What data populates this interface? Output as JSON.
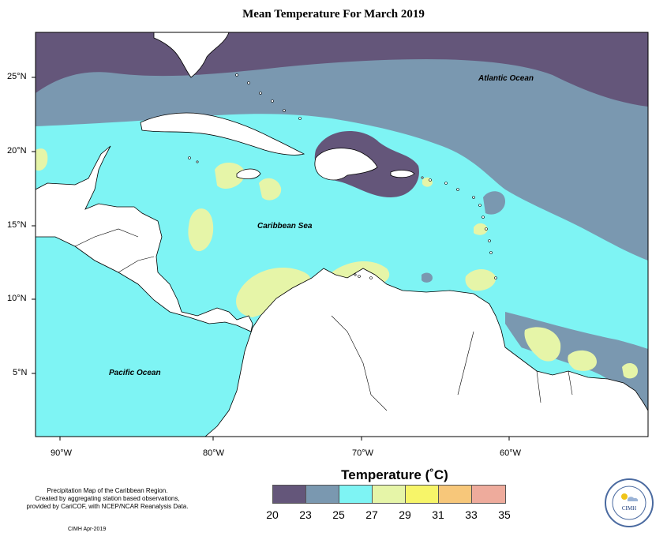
{
  "title": "Mean Temperature For March 2019",
  "lat_labels": [
    "25°N",
    "20°N",
    "15°N",
    "10°N",
    "5°N"
  ],
  "lon_labels": [
    "90°W",
    "80°W",
    "70°W",
    "60°W"
  ],
  "places": {
    "atlantic": "Atlantic Ocean",
    "caribbean": "Caribbean Sea",
    "pacific": "Pacific Ocean"
  },
  "legend": {
    "title": "Temperature (˚C)",
    "colors": [
      "#64567a",
      "#7a98b0",
      "#7ef4f4",
      "#e6f5a8",
      "#f7f569",
      "#f7c77a",
      "#eeab9c"
    ],
    "ticks": [
      "20",
      "23",
      "25",
      "27",
      "29",
      "31",
      "33",
      "35"
    ]
  },
  "note": {
    "lines": [
      "Precipitation Map of the Caribbean Region.",
      "Created by aggregating station based observations,",
      "provided by CariCOF, with NCEP/NCAR Reanalysis Data."
    ],
    "credit": "CIMH Apr-2019"
  },
  "logo": {
    "text": "CIMH"
  }
}
